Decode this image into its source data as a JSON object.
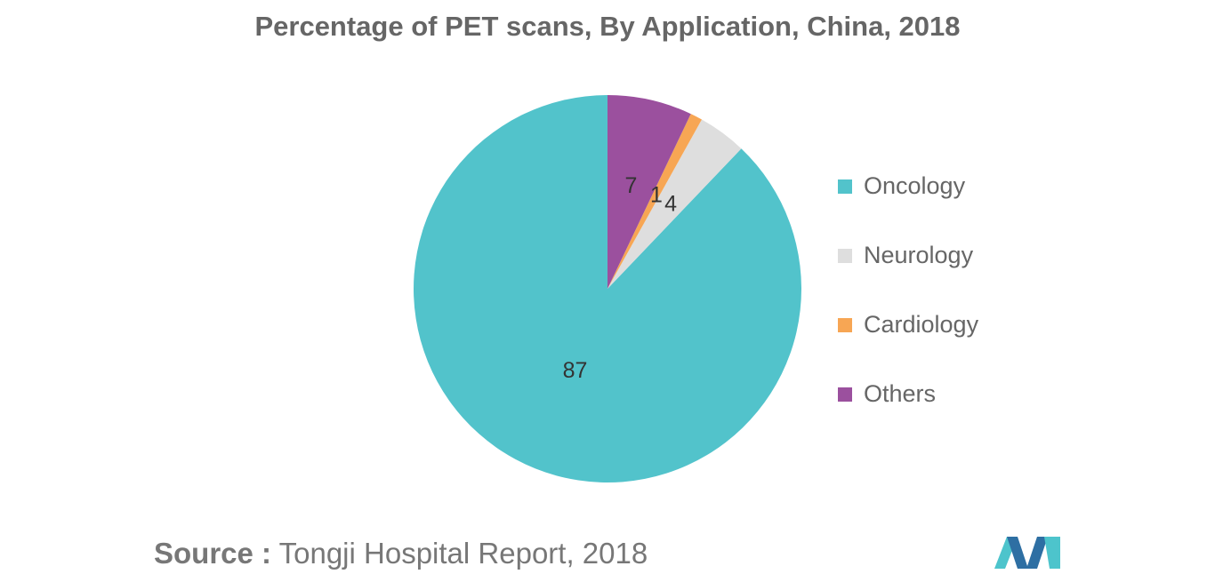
{
  "chart_data": {
    "type": "pie",
    "title": "Percentage of PET scans, By Application, China, 2018",
    "slices": [
      {
        "label": "Oncology",
        "value": 87,
        "color": "#52c3cb"
      },
      {
        "label": "Neurology",
        "value": 4,
        "color": "#dedede"
      },
      {
        "label": "Cardiology",
        "value": 1,
        "color": "#f7a654"
      },
      {
        "label": "Others",
        "value": 7,
        "color": "#9b509e"
      }
    ],
    "data_labels": [
      "87",
      "4",
      "1",
      "7"
    ],
    "legend_position": "right"
  },
  "source": {
    "prefix": "Source :",
    "text": " Tongji Hospital Report, 2018"
  },
  "logo": {
    "colors": [
      "#2e6fa3",
      "#4dc4cc"
    ]
  }
}
